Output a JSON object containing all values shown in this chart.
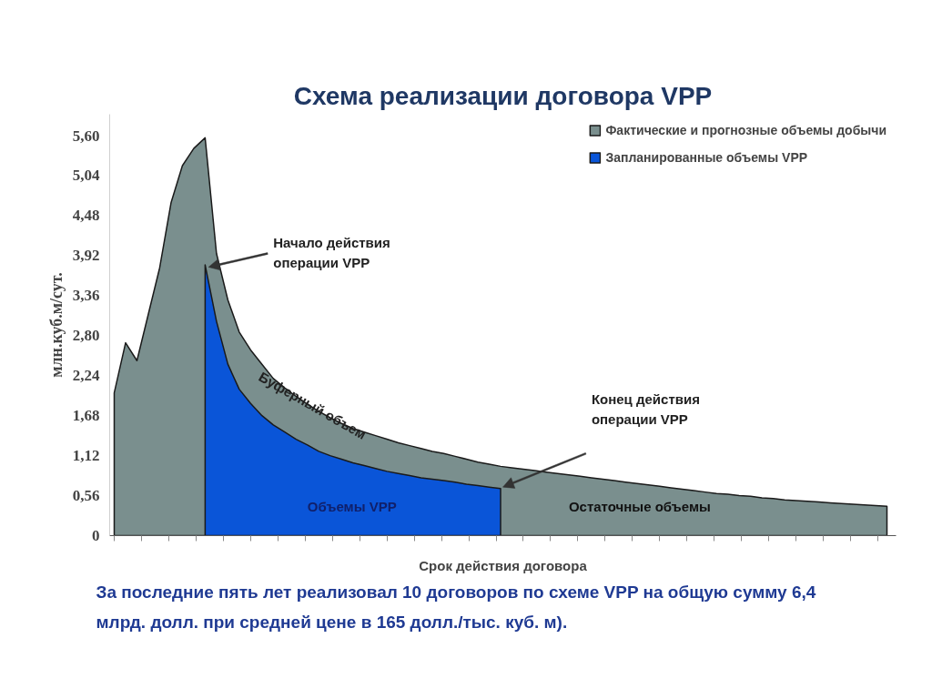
{
  "chart_data": {
    "type": "area",
    "title": "Схема реализации договора VPP",
    "xlabel": "Срок действия договора",
    "ylabel": "млн.куб.м/сут.",
    "categories": [
      null,
      null,
      null,
      null,
      null,
      null,
      null,
      null,
      null,
      null,
      null,
      null,
      null,
      null,
      null,
      null,
      null,
      null,
      null,
      null,
      null,
      null,
      null,
      null,
      null,
      null,
      null,
      null,
      null,
      null,
      null,
      null,
      null,
      null,
      null,
      null,
      null,
      null,
      null,
      null,
      null,
      null,
      null,
      null,
      null,
      null,
      null,
      null,
      null,
      null,
      null,
      null,
      null,
      null,
      null,
      null,
      null,
      null,
      null,
      null,
      null,
      null,
      null,
      null,
      null,
      null,
      null,
      null,
      null
    ],
    "series": [
      {
        "name": "Фактические и прогнозные объемы добычи",
        "color": "#7a8f8e",
        "values": [
          2.0,
          2.7,
          2.45,
          3.1,
          3.75,
          4.66,
          5.18,
          5.42,
          5.57,
          3.95,
          3.3,
          2.85,
          2.6,
          2.4,
          2.2,
          2.07,
          1.95,
          1.84,
          1.74,
          1.65,
          1.57,
          1.5,
          1.45,
          1.4,
          1.35,
          1.3,
          1.26,
          1.22,
          1.18,
          1.15,
          1.11,
          1.07,
          1.03,
          1.0,
          0.97,
          0.95,
          0.93,
          0.91,
          0.89,
          0.87,
          0.85,
          0.83,
          0.81,
          0.79,
          0.77,
          0.75,
          0.73,
          0.71,
          0.69,
          0.67,
          0.65,
          0.63,
          0.61,
          0.59,
          0.58,
          0.56,
          0.55,
          0.53,
          0.52,
          0.5,
          0.49,
          0.48,
          0.47,
          0.46,
          0.45,
          0.44,
          0.43,
          0.42,
          0.41
        ]
      },
      {
        "name": "Запланированные объемы VPP",
        "color": "#0a55d8",
        "values": [
          null,
          null,
          null,
          null,
          null,
          null,
          null,
          null,
          3.79,
          3.0,
          2.4,
          2.05,
          1.85,
          1.68,
          1.55,
          1.45,
          1.35,
          1.27,
          1.18,
          1.12,
          1.07,
          1.02,
          0.98,
          0.94,
          0.9,
          0.87,
          0.84,
          0.81,
          0.79,
          0.77,
          0.75,
          0.72,
          0.7,
          0.68,
          0.66,
          null,
          null,
          null,
          null,
          null,
          null,
          null,
          null,
          null,
          null,
          null,
          null,
          null,
          null,
          null,
          null,
          null,
          null,
          null,
          null,
          null,
          null,
          null,
          null,
          null,
          null,
          null,
          null,
          null,
          null,
          null,
          null,
          null,
          null
        ]
      }
    ],
    "ylim": [
      0,
      5.9
    ],
    "yticks": [
      {
        "value": 0,
        "label": "0"
      },
      {
        "value": 0.56,
        "label": "0,56"
      },
      {
        "value": 1.12,
        "label": "1,12"
      },
      {
        "value": 1.68,
        "label": "1,68"
      },
      {
        "value": 2.24,
        "label": "2,24"
      },
      {
        "value": 2.8,
        "label": "2,80"
      },
      {
        "value": 3.36,
        "label": "3,36"
      },
      {
        "value": 3.92,
        "label": "3,92"
      },
      {
        "value": 4.48,
        "label": "4,48"
      },
      {
        "value": 5.04,
        "label": "5,04"
      },
      {
        "value": 5.6,
        "label": "5,60"
      }
    ],
    "tick_labels": "y",
    "grid": false,
    "legend": "top right",
    "annotations": [
      "Начало действия операции VPP",
      "Конец действия операции VPP",
      "Буферный объем",
      "Объемы VPP",
      "Остаточные объемы",
      "За последние пять лет реализовал 10 договоров по схеме VPP на общую сумму 6,4 млрд. долл.  при средней цене в 165 долл./тыс. куб. м)."
    ]
  }
}
